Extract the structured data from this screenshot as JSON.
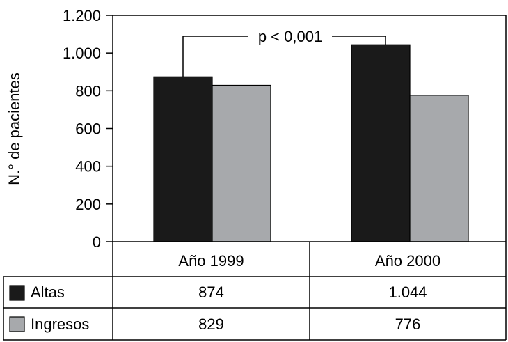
{
  "chart_data": {
    "type": "bar",
    "ylabel": "N.° de pacientes",
    "xlabel": "",
    "ylim": [
      0,
      1200
    ],
    "y_ticks": [
      0,
      200,
      400,
      600,
      800,
      1000,
      1200
    ],
    "y_tick_labels": [
      "0",
      "200",
      "400",
      "600",
      "800",
      "1.000",
      "1.200"
    ],
    "categories": [
      "Año 1999",
      "Año 2000"
    ],
    "series": [
      {
        "name": "Altas",
        "values": [
          874,
          1044
        ],
        "value_labels": [
          "874",
          "1.044"
        ],
        "color": "#1a1a1a"
      },
      {
        "name": "Ingresos",
        "values": [
          829,
          776
        ],
        "value_labels": [
          "829",
          "776"
        ],
        "color": "#a7a9ac"
      }
    ],
    "annotation": "p < 0,001",
    "grid": false,
    "legend_placement": "data table below chart"
  }
}
